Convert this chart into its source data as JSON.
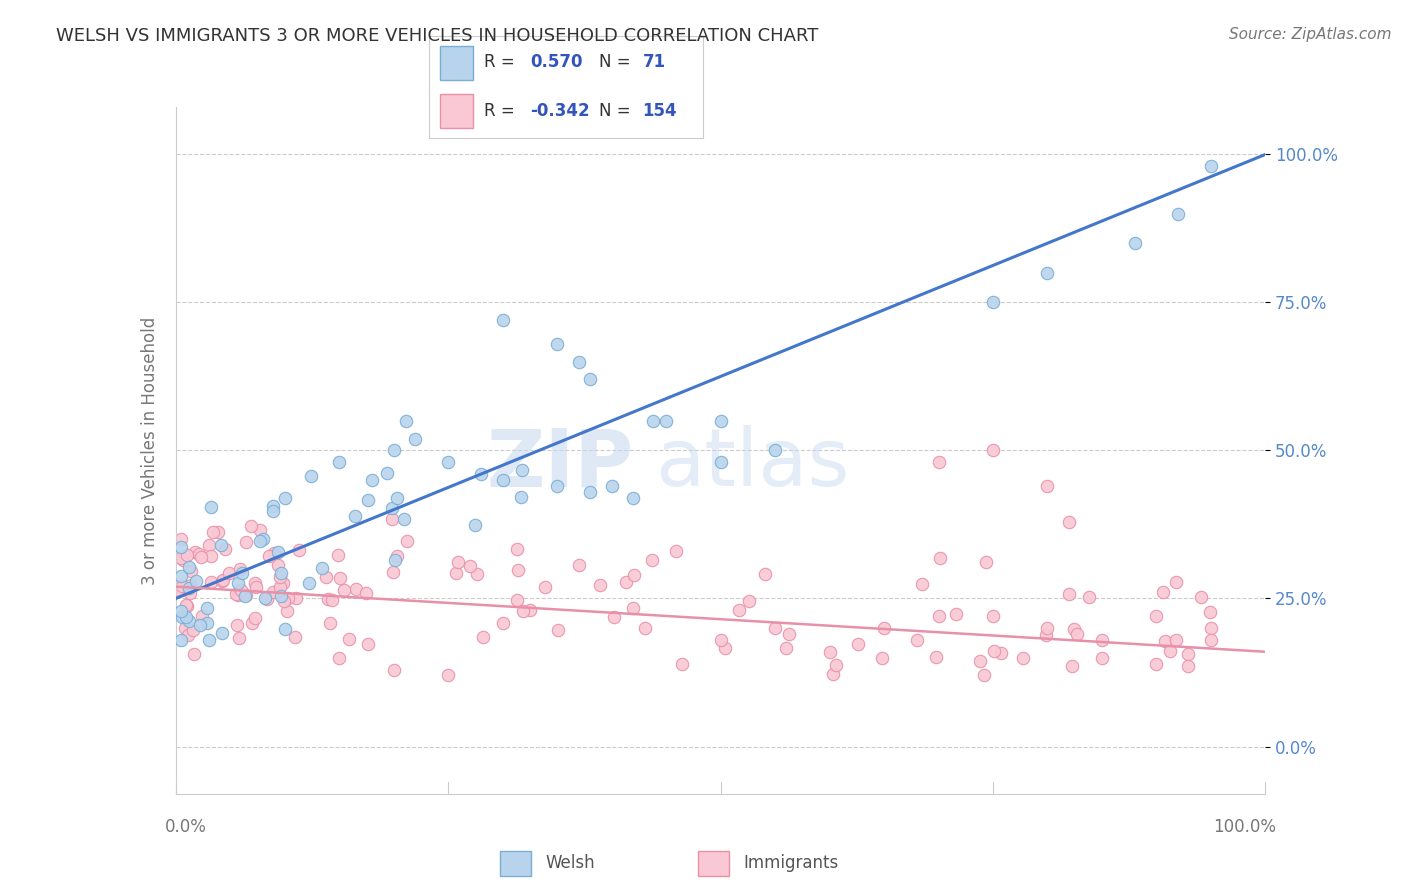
{
  "title": "WELSH VS IMMIGRANTS 3 OR MORE VEHICLES IN HOUSEHOLD CORRELATION CHART",
  "source": "Source: ZipAtlas.com",
  "ylabel": "3 or more Vehicles in Household",
  "xlim": [
    0,
    100
  ],
  "ylim": [
    -8,
    108
  ],
  "yticks": [
    0,
    25,
    50,
    75,
    100
  ],
  "ytick_labels": [
    "0.0%",
    "25.0%",
    "50.0%",
    "75.0%",
    "100.0%"
  ],
  "welsh_R": 0.57,
  "welsh_N": 71,
  "immigrants_R": -0.342,
  "immigrants_N": 154,
  "welsh_color": "#b8d4ed",
  "welsh_edge_color": "#7aadd4",
  "immigrants_color": "#f9c8d4",
  "immigrants_edge_color": "#e890a8",
  "line_welsh_color": "#4477cc",
  "line_immigrants_color": "#e890a8",
  "watermark_zip": "ZIP",
  "watermark_atlas": "atlas",
  "legend_welsh_label": "Welsh",
  "legend_immigrants_label": "Immigrants",
  "background_color": "#ffffff",
  "grid_color": "#cccccc",
  "title_color": "#333333",
  "axis_label_color": "#777777",
  "ytick_color": "#5588cc",
  "legend_text_color": "#3355bb",
  "legend_r_label_color": "#333333",
  "scatter_size": 80,
  "line_welsh_start_y": 25,
  "line_welsh_end_y": 100,
  "line_imm_start_y": 27,
  "line_imm_end_y": 16
}
